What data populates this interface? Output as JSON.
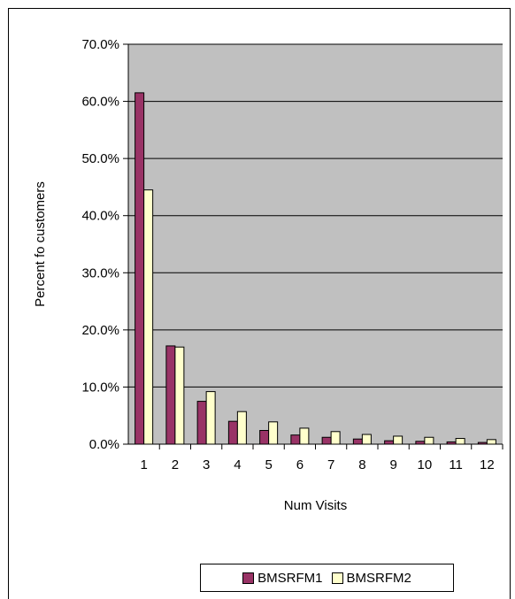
{
  "chart_data": {
    "type": "bar",
    "title": "",
    "xlabel": "Num Visits",
    "ylabel": "Percent fo customers",
    "categories": [
      "1",
      "2",
      "3",
      "4",
      "5",
      "6",
      "7",
      "8",
      "9",
      "10",
      "11",
      "12"
    ],
    "ylim": [
      0,
      70
    ],
    "yticks": [
      "0.0%",
      "10.0%",
      "20.0%",
      "30.0%",
      "40.0%",
      "50.0%",
      "60.0%",
      "70.0%"
    ],
    "grid": true,
    "legend_position": "bottom",
    "plot_background": "#C0C0C0",
    "series": [
      {
        "name": "BMSRFM1",
        "color": "#993366",
        "values": [
          61.5,
          17.2,
          7.5,
          4.0,
          2.4,
          1.6,
          1.2,
          0.9,
          0.6,
          0.5,
          0.4,
          0.3
        ]
      },
      {
        "name": "BMSRFM2",
        "color": "#FFFFCC",
        "values": [
          44.5,
          17.0,
          9.2,
          5.7,
          3.9,
          2.8,
          2.2,
          1.7,
          1.4,
          1.2,
          1.0,
          0.8
        ]
      }
    ]
  }
}
